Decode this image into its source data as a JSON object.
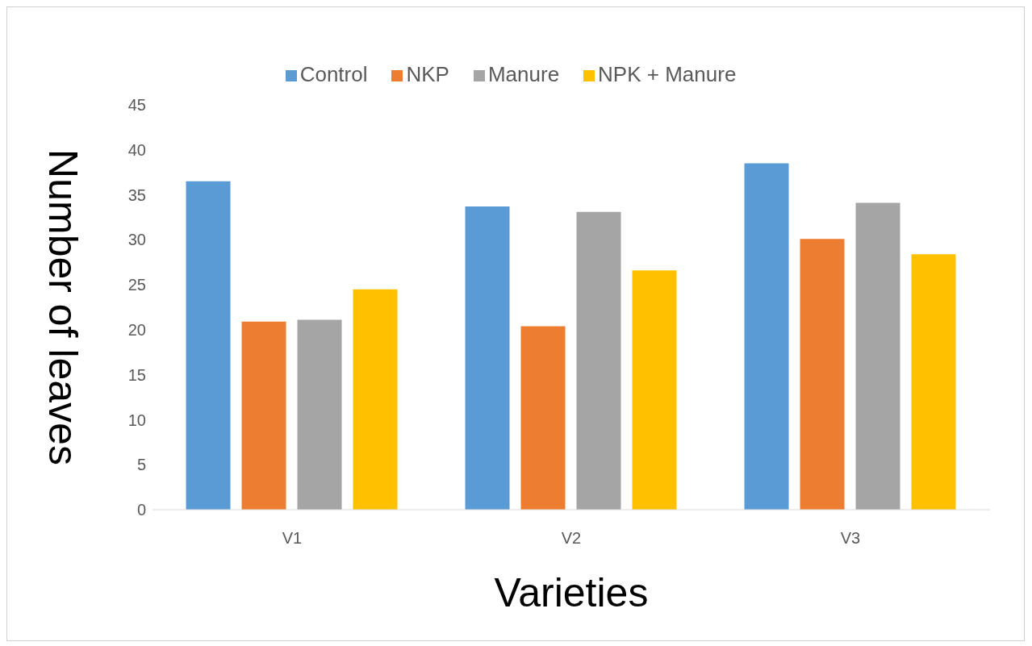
{
  "chart_data": {
    "type": "bar",
    "xlabel": "Varieties",
    "ylabel": "Number of leaves",
    "categories": [
      "V1",
      "V2",
      "V3"
    ],
    "series": [
      {
        "name": "Control",
        "color": "#5b9bd5",
        "values": [
          36.5,
          33.7,
          38.5
        ]
      },
      {
        "name": "NKP",
        "color": "#ed7d31",
        "values": [
          20.9,
          20.4,
          30.1
        ]
      },
      {
        "name": "Manure",
        "color": "#a5a5a5",
        "values": [
          21.1,
          33.1,
          34.1
        ]
      },
      {
        "name": "NPK + Manure",
        "color": "#ffc000",
        "values": [
          24.5,
          26.6,
          28.4
        ]
      }
    ],
    "ylim": [
      0,
      45
    ],
    "yticks": [
      0,
      5,
      10,
      15,
      20,
      25,
      30,
      35,
      40,
      45
    ],
    "grid": false,
    "legend": "top"
  }
}
